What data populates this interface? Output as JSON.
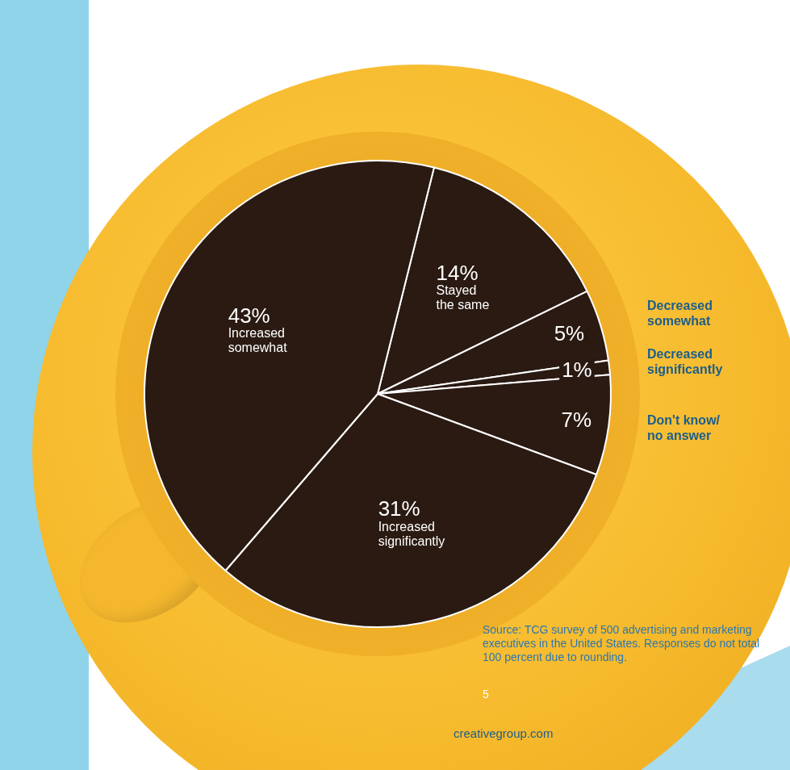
{
  "chart_data": {
    "type": "pie",
    "categories": [
      "Stayed the same",
      "Decreased somewhat",
      "Decreased significantly",
      "Don't know/ no answer",
      "Increased significantly",
      "Increased somewhat"
    ],
    "values": [
      14,
      5,
      1,
      7,
      31,
      43
    ],
    "value_labels": [
      "14%",
      "5%",
      "1%",
      "7%",
      "31%",
      "43%"
    ],
    "color": "#2a1a12",
    "data_labels": true,
    "annotations": [
      "Source: TCG survey of 500 advertising and marketing executives in the United States. Responses do not total 100 percent due to rounding.",
      "5",
      "creativegroup.com"
    ]
  }
}
